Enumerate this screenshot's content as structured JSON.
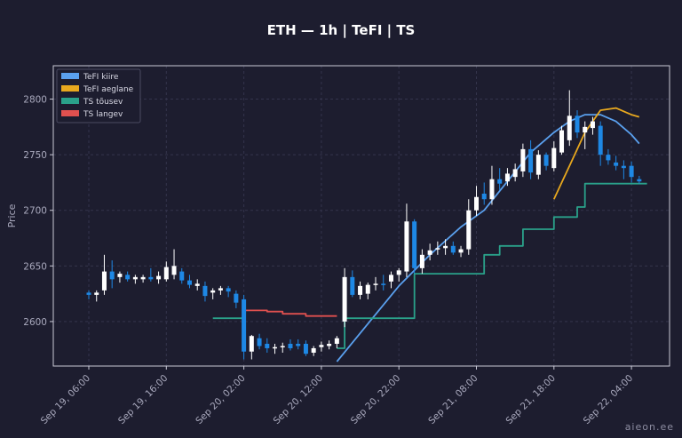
{
  "chart_data": {
    "type": "candlestick",
    "title": "ETH — 1h  |  TeFI  |  TS",
    "ylabel": "Price",
    "ylim": [
      2560,
      2830
    ],
    "y_ticks": [
      2600,
      2650,
      2700,
      2750,
      2800
    ],
    "x_ticks": [
      {
        "label": "Sep 19, 06:00",
        "index": 0
      },
      {
        "label": "Sep 19, 16:00",
        "index": 10
      },
      {
        "label": "Sep 20, 02:00",
        "index": 20
      },
      {
        "label": "Sep 20, 12:00",
        "index": 30
      },
      {
        "label": "Sep 20, 22:00",
        "index": 40
      },
      {
        "label": "Sep 21, 08:00",
        "index": 50
      },
      {
        "label": "Sep 21, 18:00",
        "index": 60
      },
      {
        "label": "Sep 22, 04:00",
        "index": 70
      }
    ],
    "legend_position": "top-left",
    "grid": true,
    "colors": {
      "up": "#ffffff",
      "down": "#1e88e5",
      "tefi_fast": "#5aa0ee",
      "tefi_slow": "#e8a81e",
      "ts_up": "#2aa18a",
      "ts_down": "#e0504f"
    },
    "candles": [
      [
        2626,
        2628,
        2620,
        2624
      ],
      [
        2624,
        2628,
        2618,
        2626
      ],
      [
        2628,
        2660,
        2624,
        2645
      ],
      [
        2645,
        2655,
        2630,
        2638
      ],
      [
        2640,
        2645,
        2635,
        2643
      ],
      [
        2642,
        2645,
        2636,
        2638
      ],
      [
        2638,
        2642,
        2634,
        2640
      ],
      [
        2638,
        2642,
        2635,
        2640
      ],
      [
        2640,
        2648,
        2636,
        2638
      ],
      [
        2638,
        2645,
        2634,
        2641
      ],
      [
        2638,
        2654,
        2636,
        2649
      ],
      [
        2642,
        2665,
        2638,
        2650
      ],
      [
        2645,
        2648,
        2634,
        2637
      ],
      [
        2637,
        2642,
        2630,
        2633
      ],
      [
        2632,
        2638,
        2628,
        2634
      ],
      [
        2632,
        2636,
        2618,
        2623
      ],
      [
        2626,
        2630,
        2620,
        2628
      ],
      [
        2628,
        2632,
        2624,
        2630
      ],
      [
        2630,
        2632,
        2622,
        2627
      ],
      [
        2625,
        2628,
        2612,
        2617
      ],
      [
        2620,
        2624,
        2566,
        2573
      ],
      [
        2573,
        2588,
        2566,
        2587
      ],
      [
        2585,
        2589,
        2575,
        2578
      ],
      [
        2580,
        2585,
        2572,
        2576
      ],
      [
        2576,
        2580,
        2571,
        2577
      ],
      [
        2577,
        2581,
        2572,
        2578
      ],
      [
        2580,
        2584,
        2574,
        2576
      ],
      [
        2580,
        2584,
        2575,
        2578
      ],
      [
        2580,
        2583,
        2569,
        2571
      ],
      [
        2572,
        2578,
        2569,
        2576
      ],
      [
        2577,
        2582,
        2573,
        2579
      ],
      [
        2578,
        2583,
        2575,
        2580
      ],
      [
        2580,
        2587,
        2576,
        2585
      ],
      [
        2600,
        2648,
        2595,
        2640
      ],
      [
        2640,
        2646,
        2622,
        2624
      ],
      [
        2624,
        2636,
        2620,
        2632
      ],
      [
        2625,
        2635,
        2620,
        2633
      ],
      [
        2633,
        2640,
        2628,
        2634
      ],
      [
        2634,
        2642,
        2628,
        2633
      ],
      [
        2636,
        2645,
        2630,
        2642
      ],
      [
        2642,
        2648,
        2636,
        2646
      ],
      [
        2645,
        2706,
        2640,
        2690
      ],
      [
        2690,
        2692,
        2643,
        2648
      ],
      [
        2648,
        2665,
        2643,
        2660
      ],
      [
        2660,
        2670,
        2655,
        2664
      ],
      [
        2665,
        2672,
        2660,
        2666
      ],
      [
        2666,
        2674,
        2660,
        2668
      ],
      [
        2668,
        2672,
        2660,
        2662
      ],
      [
        2662,
        2668,
        2658,
        2665
      ],
      [
        2665,
        2710,
        2660,
        2700
      ],
      [
        2700,
        2722,
        2695,
        2712
      ],
      [
        2715,
        2725,
        2705,
        2710
      ],
      [
        2710,
        2740,
        2705,
        2728
      ],
      [
        2728,
        2738,
        2718,
        2724
      ],
      [
        2726,
        2738,
        2722,
        2733
      ],
      [
        2730,
        2742,
        2726,
        2737
      ],
      [
        2735,
        2760,
        2730,
        2755
      ],
      [
        2755,
        2763,
        2728,
        2734
      ],
      [
        2732,
        2754,
        2728,
        2750
      ],
      [
        2750,
        2752,
        2736,
        2740
      ],
      [
        2738,
        2762,
        2735,
        2756
      ],
      [
        2752,
        2776,
        2750,
        2772
      ],
      [
        2763,
        2808,
        2758,
        2785
      ],
      [
        2785,
        2790,
        2765,
        2770
      ],
      [
        2770,
        2780,
        2755,
        2775
      ],
      [
        2774,
        2784,
        2768,
        2780
      ],
      [
        2776,
        2780,
        2740,
        2750
      ],
      [
        2750,
        2755,
        2741,
        2745
      ],
      [
        2743,
        2749,
        2736,
        2740
      ],
      [
        2740,
        2745,
        2728,
        2738
      ],
      [
        2740,
        2744,
        2725,
        2730
      ],
      [
        2728,
        2731,
        2724,
        2726
      ]
    ],
    "series": [
      {
        "name": "TeFI kiire",
        "style": "line",
        "color": "#5aa0ee",
        "x": [
          32,
          36,
          40,
          44,
          48,
          51,
          54,
          57,
          60,
          62,
          64,
          66,
          68,
          70,
          71
        ],
        "y": [
          2564,
          2598,
          2632,
          2660,
          2685,
          2700,
          2726,
          2752,
          2770,
          2780,
          2786,
          2786,
          2780,
          2768,
          2760
        ]
      },
      {
        "name": "TeFI aeglane",
        "style": "line",
        "color": "#e8a81e",
        "x": [
          60,
          62,
          64,
          66,
          68,
          70,
          71
        ],
        "y": [
          2710,
          2740,
          2770,
          2790,
          2792,
          2786,
          2784
        ]
      },
      {
        "name": "TS tõusev",
        "style": "step",
        "color": "#2aa18a",
        "x": [
          16,
          20,
          21,
          32,
          33,
          41,
          42,
          50,
          51,
          52,
          53,
          55,
          56,
          58,
          60,
          61,
          63,
          64,
          68,
          72
        ],
        "y": [
          2603,
          2603,
          null,
          2576,
          2603,
          2603,
          2643,
          2643,
          2660,
          2660,
          2668,
          2668,
          2683,
          2683,
          2694,
          2694,
          2703,
          2724,
          2724,
          2724
        ]
      },
      {
        "name": "TS langev",
        "style": "step",
        "color": "#e0504f",
        "x": [
          20,
          23,
          25,
          28,
          32
        ],
        "y": [
          2610,
          2609,
          2607,
          2605,
          2605
        ]
      }
    ],
    "legend": [
      {
        "name": "TeFI kiire",
        "color": "#5aa0ee"
      },
      {
        "name": "TeFI aeglane",
        "color": "#e8a81e"
      },
      {
        "name": "TS tõusev",
        "color": "#2aa18a"
      },
      {
        "name": "TS langev",
        "color": "#e0504f"
      }
    ]
  },
  "watermark": "aieon.ee"
}
